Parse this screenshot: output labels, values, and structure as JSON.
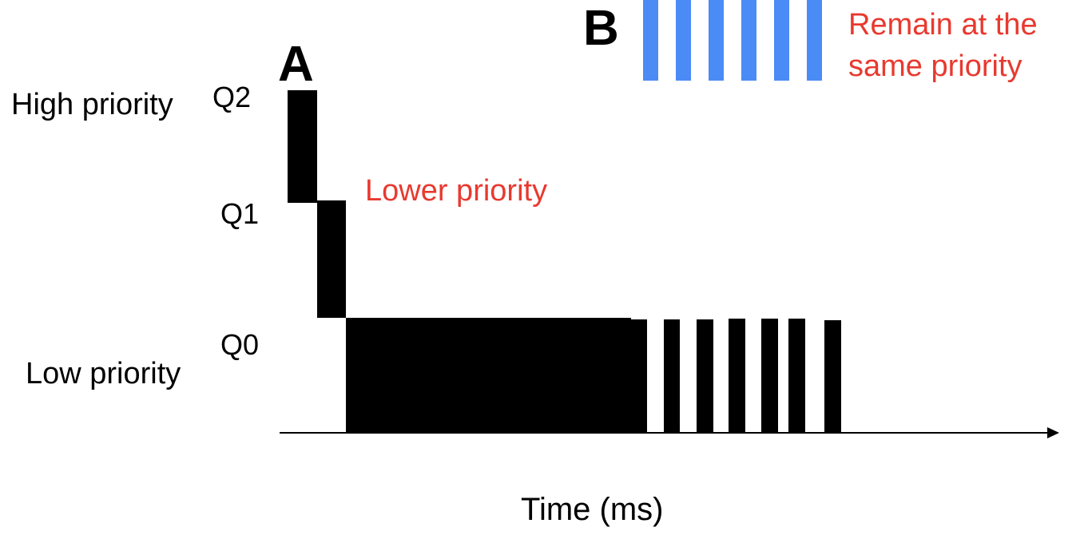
{
  "labels": {
    "high_priority": "High priority",
    "low_priority": "Low priority",
    "q2": "Q2",
    "q1": "Q1",
    "q0": "Q0",
    "job_a": "A",
    "job_b": "B",
    "lower_priority_note": "Lower priority",
    "remain_note_line1": "Remain at the",
    "remain_note_line2": "same priority",
    "x_axis": "Time (ms)"
  },
  "colors": {
    "job_a": "#000000",
    "job_b": "#4b8bf5",
    "note": "#e8392f",
    "axis": "#000000"
  }
}
